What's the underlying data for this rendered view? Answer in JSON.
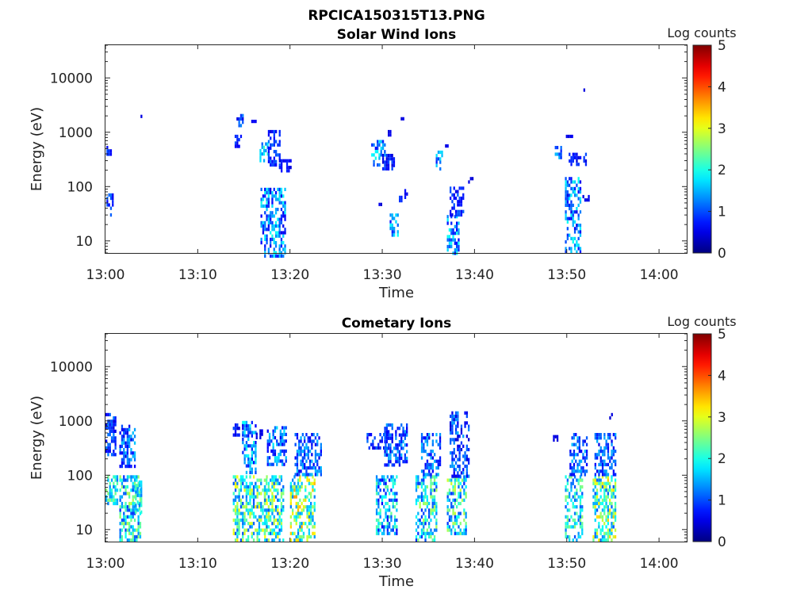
{
  "figure_title": "RPCICA150315T13.PNG",
  "chart_data": [
    {
      "type": "heatmap",
      "title": "Solar Wind Ions",
      "xlabel": "Time",
      "ylabel": "Energy (eV)",
      "x_ticks": [
        "13:00",
        "13:10",
        "13:20",
        "13:30",
        "13:40",
        "13:50",
        "14:00"
      ],
      "x_range_minutes": [
        0,
        63
      ],
      "y_scale": "log",
      "y_ticks": [
        "10",
        "100",
        "1000",
        "10000"
      ],
      "y_range": [
        6,
        40000
      ],
      "colorbar": {
        "label": "Log counts",
        "ticks": [
          "0",
          "1",
          "2",
          "3",
          "4",
          "5"
        ],
        "range": [
          0,
          5
        ],
        "colormap": "jet"
      },
      "blobs": [
        {
          "t": [
            0.1,
            0.5
          ],
          "e": [
            380,
            560
          ],
          "v": [
            0.5,
            1.0
          ]
        },
        {
          "t": [
            0.1,
            0.7
          ],
          "e": [
            30,
            75
          ],
          "v": [
            0.5,
            1.2
          ]
        },
        {
          "t": [
            3.8,
            4.0
          ],
          "e": [
            1900,
            2100
          ],
          "v": [
            0.4,
            0.6
          ]
        },
        {
          "t": [
            14.2,
            14.8
          ],
          "e": [
            1300,
            2500
          ],
          "v": [
            0.5,
            1.3
          ]
        },
        {
          "t": [
            14.0,
            14.6
          ],
          "e": [
            550,
            900
          ],
          "v": [
            0.5,
            1.0
          ]
        },
        {
          "t": [
            15.8,
            16.2
          ],
          "e": [
            1500,
            1700
          ],
          "v": [
            0.4,
            0.6
          ]
        },
        {
          "t": [
            16.7,
            17.6
          ],
          "e": [
            300,
            750
          ],
          "v": [
            0.8,
            2.2
          ]
        },
        {
          "t": [
            17.6,
            18.8
          ],
          "e": [
            250,
            1100
          ],
          "v": [
            0.4,
            1.2
          ]
        },
        {
          "t": [
            18.8,
            20.0
          ],
          "e": [
            200,
            320
          ],
          "v": [
            0.4,
            0.8
          ]
        },
        {
          "t": [
            16.8,
            19.4
          ],
          "e": [
            5,
            95
          ],
          "v": [
            0.5,
            2.0
          ]
        },
        {
          "t": [
            28.8,
            30.2
          ],
          "e": [
            260,
            720
          ],
          "v": [
            0.6,
            2.0
          ]
        },
        {
          "t": [
            30.0,
            31.3
          ],
          "e": [
            210,
            400
          ],
          "v": [
            0.4,
            1.0
          ]
        },
        {
          "t": [
            30.4,
            30.8
          ],
          "e": [
            900,
            1100
          ],
          "v": [
            0.4,
            0.6
          ]
        },
        {
          "t": [
            32.0,
            32.4
          ],
          "e": [
            1700,
            1900
          ],
          "v": [
            0.4,
            0.6
          ]
        },
        {
          "t": [
            29.6,
            30.1
          ],
          "e": [
            50,
            58
          ],
          "v": [
            0.4,
            0.6
          ]
        },
        {
          "t": [
            30.8,
            31.6
          ],
          "e": [
            12,
            32
          ],
          "v": [
            0.7,
            2.0
          ]
        },
        {
          "t": [
            31.8,
            32.6
          ],
          "e": [
            55,
            90
          ],
          "v": [
            0.5,
            1.0
          ]
        },
        {
          "t": [
            35.8,
            36.5
          ],
          "e": [
            200,
            460
          ],
          "v": [
            0.7,
            1.8
          ]
        },
        {
          "t": [
            36.8,
            37.3
          ],
          "e": [
            530,
            600
          ],
          "v": [
            0.4,
            0.6
          ]
        },
        {
          "t": [
            37.0,
            38.2
          ],
          "e": [
            6,
            30
          ],
          "v": [
            0.6,
            2.0
          ]
        },
        {
          "t": [
            37.3,
            38.8
          ],
          "e": [
            30,
            100
          ],
          "v": [
            0.5,
            1.1
          ]
        },
        {
          "t": [
            39.3,
            39.8
          ],
          "e": [
            130,
            150
          ],
          "v": [
            0.4,
            0.6
          ]
        },
        {
          "t": [
            48.7,
            49.3
          ],
          "e": [
            350,
            560
          ],
          "v": [
            0.8,
            1.8
          ]
        },
        {
          "t": [
            49.9,
            50.5
          ],
          "e": [
            800,
            900
          ],
          "v": [
            0.4,
            0.6
          ]
        },
        {
          "t": [
            50.2,
            52.0
          ],
          "e": [
            240,
            420
          ],
          "v": [
            0.4,
            1.0
          ]
        },
        {
          "t": [
            49.8,
            51.5
          ],
          "e": [
            6,
            150
          ],
          "v": [
            0.5,
            2.0
          ]
        },
        {
          "t": [
            51.7,
            52.4
          ],
          "e": [
            60,
            70
          ],
          "v": [
            0.4,
            0.6
          ]
        },
        {
          "t": [
            51.8,
            52.3
          ],
          "e": [
            5800,
            6400
          ],
          "v": [
            0.4,
            0.6
          ]
        }
      ]
    },
    {
      "type": "heatmap",
      "title": "Cometary Ions",
      "xlabel": "Time",
      "ylabel": "Energy (eV)",
      "x_ticks": [
        "13:00",
        "13:10",
        "13:20",
        "13:30",
        "13:40",
        "13:50",
        "14:00"
      ],
      "x_range_minutes": [
        0,
        63
      ],
      "y_scale": "log",
      "y_ticks": [
        "10",
        "100",
        "1000",
        "10000"
      ],
      "y_range": [
        6,
        40000
      ],
      "colorbar": {
        "label": "Log counts",
        "ticks": [
          "0",
          "1",
          "2",
          "3",
          "4",
          "5"
        ],
        "range": [
          0,
          5
        ],
        "colormap": "jet"
      },
      "blobs": [
        {
          "t": [
            0.0,
            1.0
          ],
          "e": [
            250,
            1400
          ],
          "v": [
            0.4,
            1.3
          ]
        },
        {
          "t": [
            0.0,
            1.2
          ],
          "e": [
            30,
            100
          ],
          "v": [
            1.2,
            2.6
          ]
        },
        {
          "t": [
            1.5,
            3.2
          ],
          "e": [
            150,
            850
          ],
          "v": [
            0.5,
            1.6
          ]
        },
        {
          "t": [
            1.5,
            3.8
          ],
          "e": [
            6,
            100
          ],
          "v": [
            0.8,
            2.8
          ]
        },
        {
          "t": [
            3.2,
            3.9
          ],
          "e": [
            20,
            80
          ],
          "v": [
            1.2,
            2.4
          ]
        },
        {
          "t": [
            13.8,
            14.8
          ],
          "e": [
            550,
            900
          ],
          "v": [
            0.4,
            1.0
          ]
        },
        {
          "t": [
            13.8,
            17.4
          ],
          "e": [
            6,
            100
          ],
          "v": [
            1.0,
            3.2
          ]
        },
        {
          "t": [
            14.8,
            16.2
          ],
          "e": [
            120,
            1000
          ],
          "v": [
            0.6,
            2.0
          ]
        },
        {
          "t": [
            16.3,
            17.0
          ],
          "e": [
            500,
            700
          ],
          "v": [
            0.4,
            0.6
          ]
        },
        {
          "t": [
            17.2,
            19.3
          ],
          "e": [
            6,
            100
          ],
          "v": [
            1.0,
            3.2
          ]
        },
        {
          "t": [
            17.5,
            19.5
          ],
          "e": [
            150,
            800
          ],
          "v": [
            0.5,
            1.8
          ]
        },
        {
          "t": [
            20.0,
            22.6
          ],
          "e": [
            6,
            100
          ],
          "v": [
            1.2,
            3.6
          ]
        },
        {
          "t": [
            20.5,
            23.4
          ],
          "e": [
            100,
            600
          ],
          "v": [
            0.5,
            1.6
          ]
        },
        {
          "t": [
            28.3,
            30.3
          ],
          "e": [
            300,
            600
          ],
          "v": [
            0.4,
            1.2
          ]
        },
        {
          "t": [
            29.3,
            31.5
          ],
          "e": [
            8,
            100
          ],
          "v": [
            0.6,
            2.4
          ]
        },
        {
          "t": [
            30.2,
            32.7
          ],
          "e": [
            150,
            900
          ],
          "v": [
            0.5,
            1.5
          ]
        },
        {
          "t": [
            33.6,
            35.8
          ],
          "e": [
            6,
            100
          ],
          "v": [
            0.8,
            2.8
          ]
        },
        {
          "t": [
            34.2,
            36.2
          ],
          "e": [
            100,
            600
          ],
          "v": [
            0.5,
            1.6
          ]
        },
        {
          "t": [
            37.0,
            39.0
          ],
          "e": [
            8,
            100
          ],
          "v": [
            0.8,
            3.0
          ]
        },
        {
          "t": [
            37.3,
            39.4
          ],
          "e": [
            100,
            1500
          ],
          "v": [
            0.4,
            1.5
          ]
        },
        {
          "t": [
            48.5,
            48.9
          ],
          "e": [
            450,
            550
          ],
          "v": [
            0.4,
            0.6
          ]
        },
        {
          "t": [
            49.8,
            51.6
          ],
          "e": [
            6,
            100
          ],
          "v": [
            1.0,
            2.6
          ]
        },
        {
          "t": [
            50.3,
            52.2
          ],
          "e": [
            100,
            600
          ],
          "v": [
            0.5,
            1.6
          ]
        },
        {
          "t": [
            52.8,
            55.2
          ],
          "e": [
            6,
            100
          ],
          "v": [
            1.0,
            3.4
          ]
        },
        {
          "t": [
            53.0,
            55.3
          ],
          "e": [
            100,
            600
          ],
          "v": [
            0.5,
            1.5
          ]
        },
        {
          "t": [
            54.6,
            55.0
          ],
          "e": [
            1200,
            1400
          ],
          "v": [
            0.4,
            0.6
          ]
        }
      ]
    }
  ]
}
